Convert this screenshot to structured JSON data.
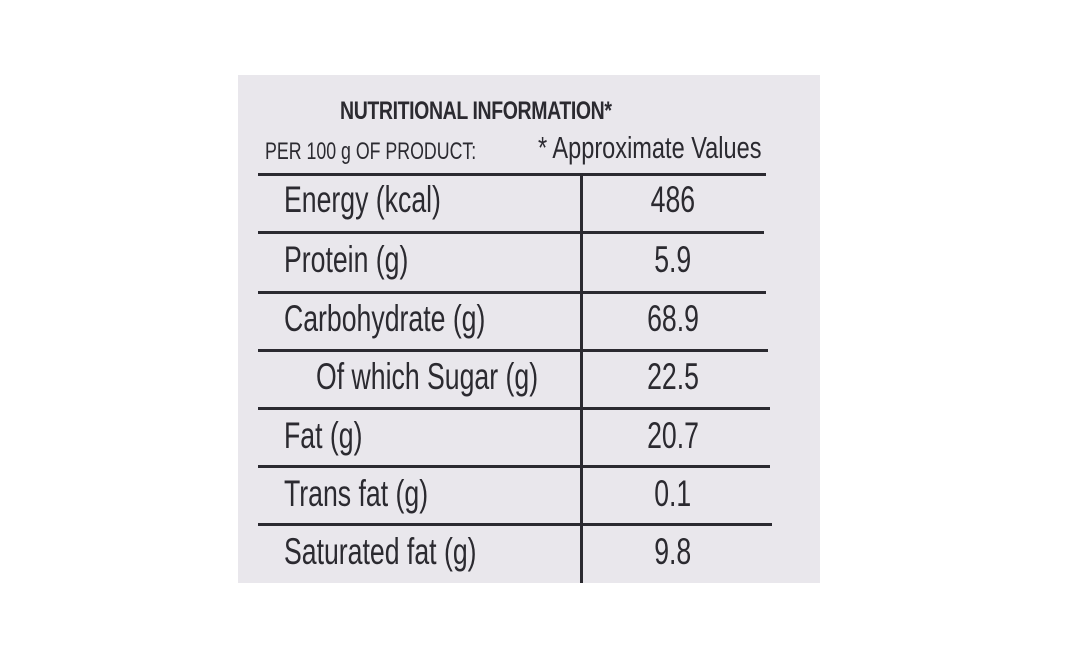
{
  "label": {
    "title": "NUTRITIONAL INFORMATION*",
    "per_label": "PER 100 g OF PRODUCT:",
    "approx_label": "* Approximate Values"
  },
  "rows": [
    {
      "name": "Energy (kcal)",
      "value": "486"
    },
    {
      "name": "Protein (g)",
      "value": "5.9"
    },
    {
      "name": "Carbohydrate (g)",
      "value": "68.9"
    },
    {
      "name": "Of which Sugar (g)",
      "value": "22.5"
    },
    {
      "name": "Fat (g)",
      "value": "20.7"
    },
    {
      "name": "Trans fat (g)",
      "value": "0.1"
    },
    {
      "name": "Saturated fat (g)",
      "value": "9.8"
    }
  ]
}
